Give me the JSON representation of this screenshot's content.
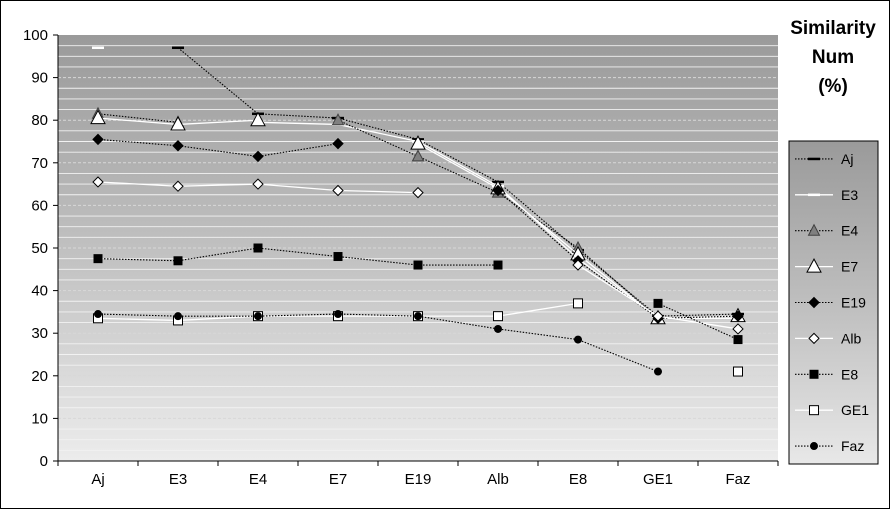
{
  "chart_data": {
    "type": "line",
    "title": [
      "Similarity",
      "Num",
      "(%)"
    ],
    "categories": [
      "Aj",
      "E3",
      "E4",
      "E7",
      "E19",
      "Alb",
      "E8",
      "GE1",
      "Faz"
    ],
    "ylim": [
      0,
      100
    ],
    "yticks": [
      0,
      10,
      20,
      30,
      40,
      50,
      60,
      70,
      80,
      90,
      100
    ],
    "legend_position": "right",
    "series": [
      {
        "name": "Aj",
        "values": [
          null,
          97,
          81.5,
          80.5,
          75.5,
          65.5,
          49.5,
          34,
          34.5
        ],
        "color": "#000000",
        "line": "dotted",
        "marker": "dash"
      },
      {
        "name": "E3",
        "values": [
          97,
          null,
          79.5,
          79,
          75,
          64.5,
          47.5,
          33.5,
          33.5
        ],
        "color": "#ffffff",
        "line": "solid",
        "marker": "dash-white"
      },
      {
        "name": "E4",
        "values": [
          81.5,
          79.5,
          null,
          80,
          71.5,
          63,
          50,
          33.5,
          34
        ],
        "color": "#000000",
        "line": "dotted",
        "marker": "triangle-gray"
      },
      {
        "name": "E7",
        "values": [
          80.5,
          79,
          80,
          null,
          74.5,
          64,
          48.5,
          33.5,
          34
        ],
        "color": "#ffffff",
        "line": "solid",
        "marker": "triangle-white"
      },
      {
        "name": "E19",
        "values": [
          75.5,
          74,
          71.5,
          74.5,
          null,
          63.5,
          47,
          33.5,
          34
        ],
        "color": "#000000",
        "line": "dotted",
        "marker": "diamond-black"
      },
      {
        "name": "Alb",
        "values": [
          65.5,
          64.5,
          65,
          63.5,
          63,
          null,
          46,
          34,
          31
        ],
        "color": "#ffffff",
        "line": "solid",
        "marker": "diamond-white"
      },
      {
        "name": "E8",
        "values": [
          47.5,
          47,
          50,
          48,
          46,
          46,
          null,
          37,
          28.5
        ],
        "color": "#000000",
        "line": "dotted",
        "marker": "square-black"
      },
      {
        "name": "GE1",
        "values": [
          33.5,
          33,
          34,
          34,
          34,
          34,
          37,
          null,
          21
        ],
        "color": "#ffffff",
        "line": "solid",
        "marker": "square-white"
      },
      {
        "name": "Faz",
        "values": [
          34.5,
          34,
          34,
          34.5,
          34,
          31,
          28.5,
          21,
          null
        ],
        "color": "#000000",
        "line": "dotted",
        "marker": "circle-black"
      }
    ]
  }
}
